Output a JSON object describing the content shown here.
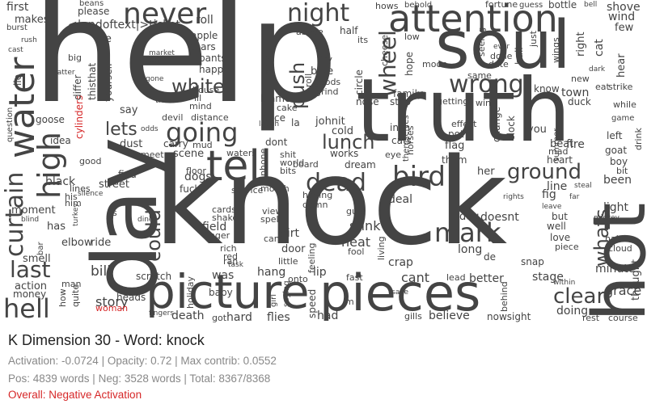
{
  "title": "K Dimension 30 - Word: knock",
  "stats": {
    "line1": "Activation: -0.0724 | Opacity: 0.72 | Max contrib: 0.0552",
    "line2": "Pos: 4839 words | Neg: 3528 words | Total: 8367/8368",
    "overall": "Overall: Negative Activation"
  },
  "colors": {
    "word": "#444444",
    "highlight": "#d62728",
    "overall": "#d62728"
  },
  "words": [
    {
      "text": "knock"
    },
    {
      "text": "help"
    },
    {
      "text": "truth"
    },
    {
      "text": "day"
    },
    {
      "text": "hot"
    },
    {
      "text": "soul"
    },
    {
      "text": "pieces"
    },
    {
      "text": "picture"
    },
    {
      "text": "attention"
    },
    {
      "text": "never"
    },
    {
      "text": "night"
    },
    {
      "text": "high"
    },
    {
      "text": "water"
    },
    {
      "text": "curtain"
    },
    {
      "text": "hell"
    },
    {
      "text": "going"
    },
    {
      "text": "tell"
    },
    {
      "text": "dead"
    },
    {
      "text": "bird"
    },
    {
      "text": "mark"
    },
    {
      "text": "wrong"
    },
    {
      "text": "lunch"
    },
    {
      "text": "ground"
    },
    {
      "text": "whats"
    },
    {
      "text": "clear"
    },
    {
      "text": "last"
    },
    {
      "text": "could"
    },
    {
      "text": "push"
    },
    {
      "text": "white"
    },
    {
      "text": "lets"
    },
    {
      "text": "wheel"
    },
    {
      "text": "bill"
    },
    {
      "text": "story"
    },
    {
      "text": "cant"
    },
    {
      "text": "stage"
    },
    {
      "text": "better"
    },
    {
      "text": "grace"
    },
    {
      "text": "minute"
    },
    {
      "text": "thought"
    },
    {
      "text": "light"
    },
    {
      "text": "been"
    },
    {
      "text": "town"
    },
    {
      "text": "fire"
    },
    {
      "text": "beat"
    },
    {
      "text": "line"
    },
    {
      "text": "fig"
    },
    {
      "text": "her"
    },
    {
      "text": "dog"
    },
    {
      "text": "doesnt"
    },
    {
      "text": "long"
    },
    {
      "text": "heat"
    },
    {
      "text": "stink"
    },
    {
      "text": "deal"
    },
    {
      "text": "crap"
    },
    {
      "text": "lip"
    },
    {
      "text": "door"
    },
    {
      "text": "dirt"
    },
    {
      "text": "field"
    },
    {
      "text": "dogs"
    },
    {
      "text": "was"
    },
    {
      "text": "hang"
    },
    {
      "text": "flies"
    },
    {
      "text": "hard"
    },
    {
      "text": "death"
    },
    {
      "text": "had"
    },
    {
      "text": "believe"
    },
    {
      "text": "doing"
    },
    {
      "text": "nowsight"
    },
    {
      "text": "rest"
    },
    {
      "text": "course"
    },
    {
      "text": "first"
    },
    {
      "text": "please"
    },
    {
      "text": "beans"
    },
    {
      "text": "roll"
    },
    {
      "text": "shove"
    },
    {
      "text": "wind"
    },
    {
      "text": "few"
    },
    {
      "text": "fortune"
    },
    {
      "text": "bottle"
    },
    {
      "text": "<|endoftext|>ticket"
    },
    {
      "text": "makes"
    },
    {
      "text": "pie"
    },
    {
      "text": "apple"
    },
    {
      "text": "tears"
    },
    {
      "text": "pants"
    },
    {
      "text": "happy"
    },
    {
      "text": "blame"
    },
    {
      "text": "pace"
    },
    {
      "text": "la"
    },
    {
      "text": "dont"
    },
    {
      "text": "johnit"
    },
    {
      "text": "cold"
    },
    {
      "text": "works"
    },
    {
      "text": "dream"
    },
    {
      "text": "board"
    },
    {
      "text": "having"
    },
    {
      "text": "damn"
    },
    {
      "text": "feeling"
    },
    {
      "text": "living"
    },
    {
      "text": "family"
    },
    {
      "text": "half"
    },
    {
      "text": "its"
    },
    {
      "text": "above"
    },
    {
      "text": "blue"
    },
    {
      "text": "goods"
    },
    {
      "text": "grind"
    },
    {
      "text": "hope"
    },
    {
      "text": "inch"
    },
    {
      "text": "cats"
    },
    {
      "text": "eye"
    },
    {
      "text": "them"
    },
    {
      "text": "flag"
    },
    {
      "text": "pot"
    },
    {
      "text": "effect"
    },
    {
      "text": "change"
    },
    {
      "text": "clock"
    },
    {
      "text": "you"
    },
    {
      "text": "heart"
    },
    {
      "text": "mad"
    },
    {
      "text": "duck"
    },
    {
      "text": "know"
    },
    {
      "text": "new"
    },
    {
      "text": "cat"
    },
    {
      "text": "right"
    },
    {
      "text": "hear"
    },
    {
      "text": "left"
    },
    {
      "text": "goat"
    },
    {
      "text": "boy"
    },
    {
      "text": "bit"
    },
    {
      "text": "habit"
    },
    {
      "text": "cloud"
    },
    {
      "text": "piece"
    },
    {
      "text": "love"
    },
    {
      "text": "well"
    },
    {
      "text": "but"
    },
    {
      "text": "snap"
    },
    {
      "text": "de"
    },
    {
      "text": "lead"
    },
    {
      "text": "behind"
    },
    {
      "text": "gills"
    },
    {
      "text": "im"
    },
    {
      "text": "fast"
    },
    {
      "text": "speed"
    },
    {
      "text": "onto"
    },
    {
      "text": "baby"
    },
    {
      "text": "holiday"
    },
    {
      "text": "scratch"
    },
    {
      "text": "heads"
    },
    {
      "text": "woman"
    },
    {
      "text": "money"
    },
    {
      "text": "action"
    },
    {
      "text": "smell"
    },
    {
      "text": "moment"
    },
    {
      "text": "black"
    },
    {
      "text": "idea"
    },
    {
      "text": "goose"
    },
    {
      "text": "say"
    },
    {
      "text": "cylinders"
    },
    {
      "text": "differ"
    },
    {
      "text": "thisthat"
    },
    {
      "text": "yourself"
    },
    {
      "text": "mind"
    },
    {
      "text": "ill"
    },
    {
      "text": "devil"
    },
    {
      "text": "distance"
    },
    {
      "text": "dust"
    },
    {
      "text": "carry"
    },
    {
      "text": "mud"
    },
    {
      "text": "meet"
    },
    {
      "text": "scene"
    },
    {
      "text": "waters"
    },
    {
      "text": "find"
    },
    {
      "text": "floor"
    },
    {
      "text": "street"
    },
    {
      "text": "lines"
    },
    {
      "text": "fuck"
    },
    {
      "text": "service"
    },
    {
      "text": "mouth"
    },
    {
      "text": "shake"
    },
    {
      "text": "cards"
    },
    {
      "text": "finger"
    },
    {
      "text": "rich"
    },
    {
      "text": "red"
    },
    {
      "text": "view"
    },
    {
      "text": "spell"
    },
    {
      "text": "can"
    },
    {
      "text": "little"
    },
    {
      "text": "his"
    },
    {
      "text": "has"
    },
    {
      "text": "elbow"
    },
    {
      "text": "ride"
    },
    {
      "text": "is"
    },
    {
      "text": "fool"
    },
    {
      "text": "guts"
    },
    {
      "text": "lie"
    },
    {
      "text": "question"
    },
    {
      "text": "big"
    },
    {
      "text": "post"
    },
    {
      "text": "gone"
    },
    {
      "text": "lights"
    },
    {
      "text": "fry"
    },
    {
      "text": "moon"
    },
    {
      "text": "circle"
    },
    {
      "text": "nose"
    },
    {
      "text": "step"
    },
    {
      "text": "getting"
    },
    {
      "text": "win"
    },
    {
      "text": "low"
    },
    {
      "text": "same"
    },
    {
      "text": "seeing"
    },
    {
      "text": "ball"
    },
    {
      "text": "just"
    },
    {
      "text": "wings"
    },
    {
      "text": "date"
    },
    {
      "text": "done"
    },
    {
      "text": "dark"
    },
    {
      "text": "while"
    },
    {
      "text": "roll"
    },
    {
      "text": "cheese"
    },
    {
      "text": "drink"
    },
    {
      "text": "good"
    },
    {
      "text": "him"
    },
    {
      "text": "man"
    },
    {
      "text": "how"
    },
    {
      "text": "quite"
    },
    {
      "text": "fingers"
    },
    {
      "text": "got"
    },
    {
      "text": "ran"
    },
    {
      "text": "task"
    },
    {
      "text": "girl"
    },
    {
      "text": "saying"
    },
    {
      "text": "save"
    },
    {
      "text": "themselves"
    },
    {
      "text": "horses"
    },
    {
      "text": "summer"
    },
    {
      "text": "tide"
    },
    {
      "text": "market"
    },
    {
      "text": "house"
    },
    {
      "text": "cake"
    },
    {
      "text": "phone"
    },
    {
      "text": "shit"
    },
    {
      "text": "world"
    },
    {
      "text": "bits"
    },
    {
      "text": "laugh"
    },
    {
      "text": "hows"
    },
    {
      "text": "behold"
    },
    {
      "text": "guess"
    },
    {
      "text": "bell"
    },
    {
      "text": "ever"
    },
    {
      "text": "rush"
    },
    {
      "text": "burst"
    },
    {
      "text": "cast"
    },
    {
      "text": "matter"
    },
    {
      "text": "within"
    },
    {
      "text": "bar"
    },
    {
      "text": "blind"
    },
    {
      "text": "turkey"
    },
    {
      "text": "odds"
    },
    {
      "text": "dine"
    },
    {
      "text": "mickey"
    },
    {
      "text": "steal"
    },
    {
      "text": "rights"
    },
    {
      "text": "far"
    },
    {
      "text": "leave"
    },
    {
      "text": "silence"
    },
    {
      "text": "game"
    },
    {
      "text": "strike"
    },
    {
      "text": "eat"
    }
  ]
}
